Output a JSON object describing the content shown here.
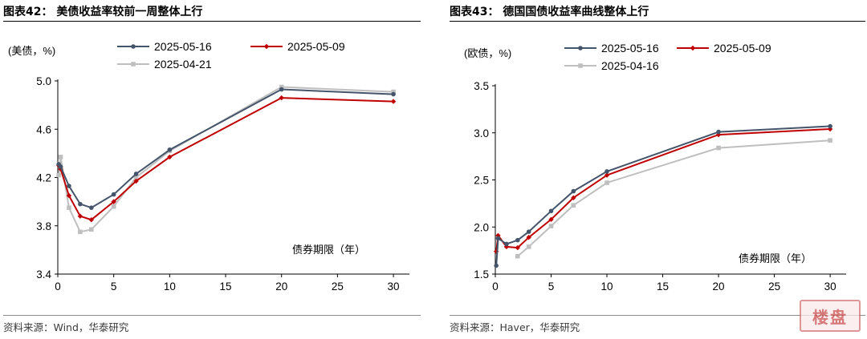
{
  "left": {
    "title": "图表42：  美债收益率较前一周整体上行",
    "source": "资料来源：Wind，华泰研究"
  },
  "right": {
    "title": "图表43：  德国国债收益率曲线整体上行",
    "source": "资料来源：Haver，华泰研究"
  },
  "watermark": {
    "text": "楼盘"
  },
  "chart_data": [
    {
      "type": "line",
      "title": "美债收益率较前一周整体上行",
      "ylabel": "(美债，%)",
      "xlabel": "债券期限（年）",
      "xlim": [
        0,
        31
      ],
      "ylim": [
        3.4,
        5.0
      ],
      "xticks": [
        0,
        5,
        10,
        15,
        20,
        25,
        30
      ],
      "yticks": [
        3.4,
        3.8,
        4.2,
        4.6,
        5.0
      ],
      "ytick_labels": [
        "3.4",
        "3.8",
        "4.2",
        "4.6",
        "5.0"
      ],
      "legend_position": "top",
      "series": [
        {
          "name": "2025-05-16",
          "color": "#44546a",
          "marker": "circle",
          "x": [
            0.083,
            0.25,
            1,
            2,
            3,
            5,
            7,
            10,
            20,
            30
          ],
          "y": [
            4.31,
            4.29,
            4.13,
            3.98,
            3.95,
            4.06,
            4.23,
            4.43,
            4.93,
            4.89
          ]
        },
        {
          "name": "2025-05-09",
          "color": "#c00000",
          "marker": "diamond",
          "x": [
            0.083,
            0.25,
            1,
            2,
            3,
            5,
            7,
            10,
            20,
            30
          ],
          "y": [
            4.3,
            4.27,
            4.05,
            3.88,
            3.85,
            4.0,
            4.17,
            4.37,
            4.86,
            4.83
          ]
        },
        {
          "name": "2025-04-21",
          "color": "#bfbfbf",
          "marker": "square",
          "x": [
            0.083,
            0.25,
            1,
            2,
            3,
            5,
            7,
            10,
            20,
            30
          ],
          "y": [
            4.22,
            4.37,
            3.95,
            3.75,
            3.77,
            3.96,
            4.2,
            4.42,
            4.95,
            4.91
          ]
        }
      ]
    },
    {
      "type": "line",
      "title": "德国国债收益率曲线整体上行",
      "ylabel": "(欧债，%)",
      "xlabel": "债券期限（年）",
      "xlim": [
        0,
        31
      ],
      "ylim": [
        1.5,
        3.5
      ],
      "xticks": [
        0,
        5,
        10,
        15,
        20,
        25,
        30
      ],
      "yticks": [
        1.5,
        2.0,
        2.5,
        3.0,
        3.5
      ],
      "ytick_labels": [
        "1.5",
        "2.0",
        "2.5",
        "3.0",
        "3.5"
      ],
      "legend_position": "top",
      "series": [
        {
          "name": "2025-05-16",
          "color": "#44546a",
          "marker": "circle",
          "x": [
            0.083,
            0.25,
            1,
            2,
            3,
            5,
            7,
            10,
            20,
            30
          ],
          "y": [
            1.59,
            1.88,
            1.82,
            1.86,
            1.95,
            2.17,
            2.38,
            2.59,
            3.01,
            3.07
          ]
        },
        {
          "name": "2025-05-09",
          "color": "#c00000",
          "marker": "diamond",
          "x": [
            0.083,
            0.25,
            1,
            2,
            3,
            5,
            7,
            10,
            20,
            30
          ],
          "y": [
            1.74,
            1.91,
            1.79,
            1.78,
            1.89,
            2.08,
            2.31,
            2.55,
            2.98,
            3.04
          ]
        },
        {
          "name": "2025-04-16",
          "color": "#bfbfbf",
          "marker": "square",
          "x": [
            2,
            3,
            5,
            7,
            10,
            20,
            30
          ],
          "y": [
            1.69,
            1.79,
            2.01,
            2.23,
            2.47,
            2.84,
            2.92
          ]
        }
      ]
    }
  ]
}
